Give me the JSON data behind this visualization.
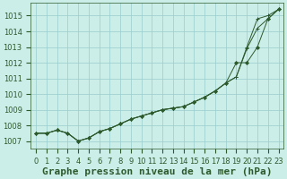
{
  "title": "Graphe pression niveau de la mer (hPa)",
  "xlabel_hours": [
    0,
    1,
    2,
    3,
    4,
    5,
    6,
    7,
    8,
    9,
    10,
    11,
    12,
    13,
    14,
    15,
    16,
    17,
    18,
    19,
    20,
    21,
    22,
    23
  ],
  "ylim": [
    1006.5,
    1015.8
  ],
  "yticks": [
    1007,
    1008,
    1009,
    1010,
    1011,
    1012,
    1013,
    1014,
    1015
  ],
  "background_color": "#cceee8",
  "grid_color": "#99cccc",
  "line_color": "#2d5a2d",
  "series_diamond": [
    1007.5,
    1007.5,
    1007.7,
    1007.5,
    1007.0,
    1007.2,
    1007.6,
    1007.8,
    1008.1,
    1008.4,
    1008.6,
    1008.8,
    1009.0,
    1009.1,
    1009.2,
    1009.5,
    1009.8,
    1010.2,
    1010.7,
    1012.0,
    1012.0,
    1013.0,
    1014.8,
    1015.4
  ],
  "series_cross1": [
    1007.5,
    1007.5,
    1007.7,
    1007.5,
    1007.0,
    1007.2,
    1007.6,
    1007.8,
    1008.1,
    1008.4,
    1008.6,
    1008.8,
    1009.0,
    1009.1,
    1009.2,
    1009.5,
    1009.8,
    1010.2,
    1010.7,
    1011.1,
    1012.9,
    1014.2,
    1014.8,
    1015.4
  ],
  "series_cross2": [
    1007.5,
    1007.5,
    1007.7,
    1007.5,
    1007.0,
    1007.2,
    1007.6,
    1007.8,
    1008.1,
    1008.4,
    1008.6,
    1008.8,
    1009.0,
    1009.1,
    1009.2,
    1009.5,
    1009.8,
    1010.2,
    1010.7,
    1011.1,
    1013.0,
    1014.8,
    1015.0,
    1015.4
  ],
  "title_fontsize": 8,
  "tick_fontsize": 6
}
